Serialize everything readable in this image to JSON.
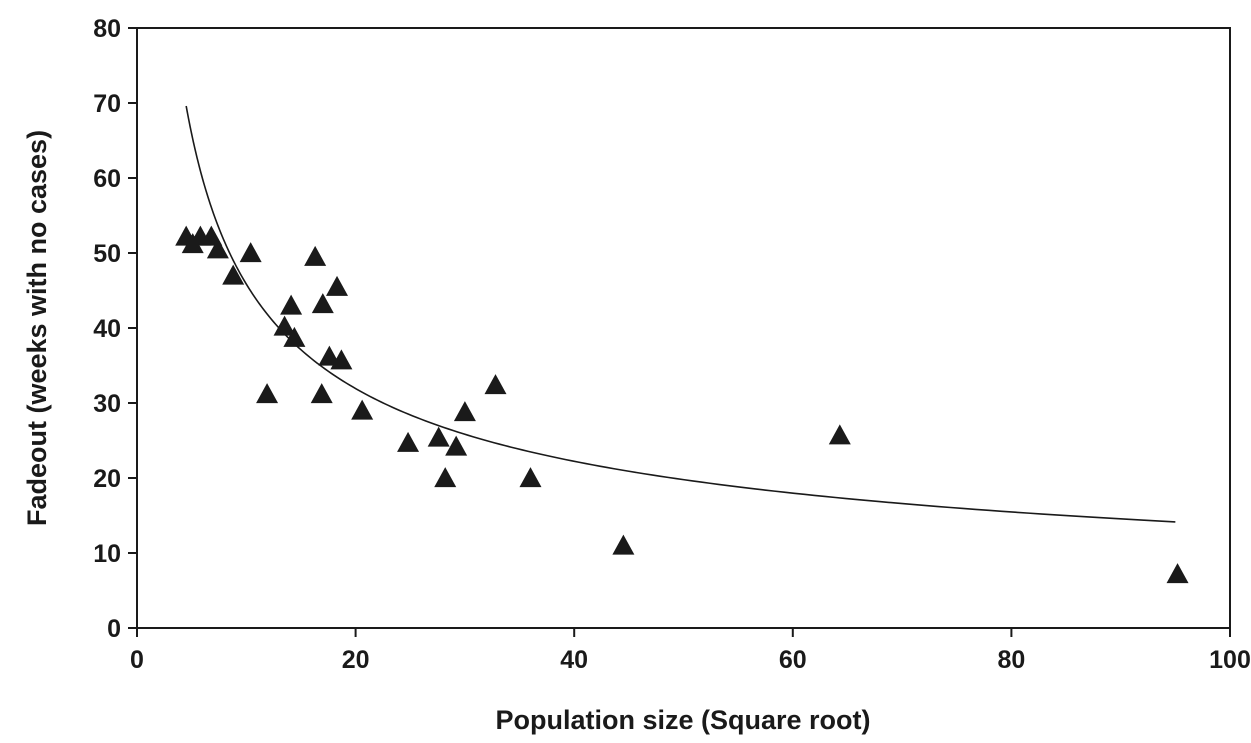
{
  "chart_data": {
    "type": "scatter",
    "title": "",
    "xlabel": "Population size (Square root)",
    "ylabel": "Fadeout (weeks with no cases)",
    "xlim": [
      0,
      100
    ],
    "ylim": [
      0,
      80
    ],
    "xticks": [
      0,
      20,
      40,
      60,
      80,
      100
    ],
    "yticks": [
      0,
      10,
      20,
      30,
      40,
      50,
      60,
      70,
      80
    ],
    "grid": false,
    "legend": "none",
    "marker": "triangle",
    "marker_color": "#1a1a1a",
    "points": [
      {
        "x": 4.5,
        "y": 52.0
      },
      {
        "x": 5.1,
        "y": 51.0
      },
      {
        "x": 5.8,
        "y": 52.0
      },
      {
        "x": 6.8,
        "y": 52.0
      },
      {
        "x": 7.4,
        "y": 50.3
      },
      {
        "x": 8.8,
        "y": 46.8
      },
      {
        "x": 10.4,
        "y": 49.8
      },
      {
        "x": 11.9,
        "y": 31.0
      },
      {
        "x": 13.5,
        "y": 40.0
      },
      {
        "x": 14.1,
        "y": 42.8
      },
      {
        "x": 14.4,
        "y": 38.5
      },
      {
        "x": 16.3,
        "y": 49.3
      },
      {
        "x": 16.9,
        "y": 31.0
      },
      {
        "x": 17.0,
        "y": 43.0
      },
      {
        "x": 17.6,
        "y": 36.0
      },
      {
        "x": 18.3,
        "y": 45.3
      },
      {
        "x": 18.7,
        "y": 35.5
      },
      {
        "x": 20.6,
        "y": 28.8
      },
      {
        "x": 24.8,
        "y": 24.5
      },
      {
        "x": 27.6,
        "y": 25.2
      },
      {
        "x": 28.2,
        "y": 19.8
      },
      {
        "x": 29.2,
        "y": 24.0
      },
      {
        "x": 30.0,
        "y": 28.6
      },
      {
        "x": 32.8,
        "y": 32.2
      },
      {
        "x": 36.0,
        "y": 19.8
      },
      {
        "x": 44.5,
        "y": 10.8
      },
      {
        "x": 64.3,
        "y": 25.5
      },
      {
        "x": 95.2,
        "y": 7.0
      }
    ],
    "trendline": {
      "x_start": 4.5,
      "x_end": 95,
      "samples": [
        {
          "x": 4.5,
          "y": 68.0
        },
        {
          "x": 10.0,
          "y": 45.6
        },
        {
          "x": 20.0,
          "y": 32.3
        },
        {
          "x": 30.0,
          "y": 26.3
        },
        {
          "x": 40.0,
          "y": 22.8
        },
        {
          "x": 60.0,
          "y": 18.6
        },
        {
          "x": 80.0,
          "y": 16.1
        },
        {
          "x": 95.0,
          "y": 12.8
        }
      ]
    }
  }
}
